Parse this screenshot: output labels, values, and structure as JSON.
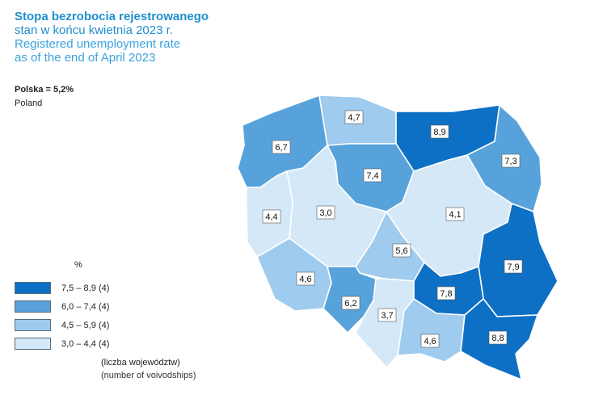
{
  "title": {
    "line1": "Stopa bezrobocia rejestrowanego",
    "line2": "stan w końcu kwietnia 2023 r.",
    "line3": "Registered unemployment rate",
    "line4": "as of the end of April 2023"
  },
  "national": {
    "label": "Polska = 5,2%",
    "label_en": "Poland"
  },
  "legend": {
    "unit": "%",
    "items": [
      {
        "range": "7,5 – 8,9",
        "count": "(4)",
        "color": "#0e70c4"
      },
      {
        "range": "6,0 – 7,4",
        "count": "(4)",
        "color": "#58a2dc"
      },
      {
        "range": "4,5 – 5,9",
        "count": "(4)",
        "color": "#9ecbee"
      },
      {
        "range": "3,0 – 4,4",
        "count": "(4)",
        "color": "#d4e8f8"
      }
    ],
    "note_pl": "(liczba województw)",
    "note_en": "(number of voivodships)"
  },
  "regions": [
    {
      "id": "zachodniopomorskie",
      "value": "6,7",
      "color": "#58a2dc"
    },
    {
      "id": "pomorskie",
      "value": "4,7",
      "color": "#9ecbee"
    },
    {
      "id": "warminsko-mazurskie",
      "value": "8,9",
      "color": "#0e70c4"
    },
    {
      "id": "podlaskie",
      "value": "7,3",
      "color": "#58a2dc"
    },
    {
      "id": "kujawsko-pomorskie",
      "value": "7,4",
      "color": "#58a2dc"
    },
    {
      "id": "lubuskie",
      "value": "4,4",
      "color": "#d4e8f8"
    },
    {
      "id": "wielkopolskie",
      "value": "3,0",
      "color": "#d4e8f8"
    },
    {
      "id": "mazowieckie",
      "value": "4,1",
      "color": "#d4e8f8"
    },
    {
      "id": "lodzkie",
      "value": "5,6",
      "color": "#9ecbee"
    },
    {
      "id": "lubelskie",
      "value": "7,9",
      "color": "#0e70c4"
    },
    {
      "id": "dolnoslaskie",
      "value": "4,6",
      "color": "#9ecbee"
    },
    {
      "id": "opolskie",
      "value": "6,2",
      "color": "#58a2dc"
    },
    {
      "id": "slaskie",
      "value": "3,7",
      "color": "#d4e8f8"
    },
    {
      "id": "swietokrzyskie",
      "value": "7,8",
      "color": "#0e70c4"
    },
    {
      "id": "malopolskie",
      "value": "4,6",
      "color": "#9ecbee"
    },
    {
      "id": "podkarpackie",
      "value": "8,8",
      "color": "#0e70c4"
    }
  ]
}
